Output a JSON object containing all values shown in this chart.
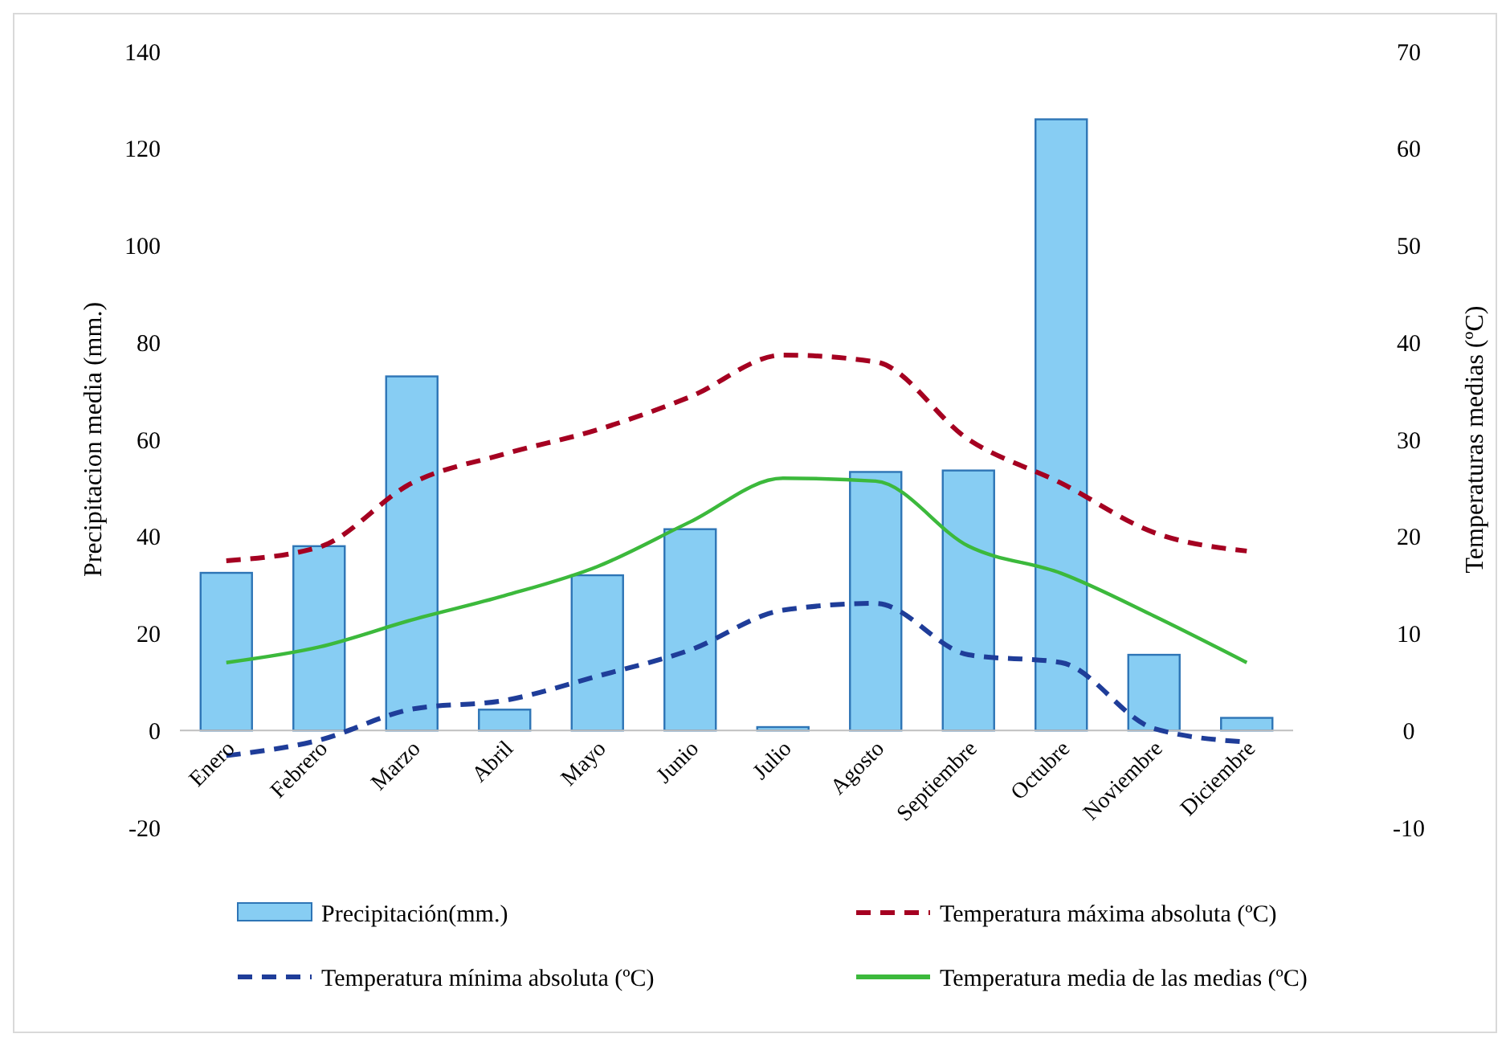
{
  "chart_data": {
    "type": "bar",
    "categories": [
      "Enero",
      "Febrero",
      "Marzo",
      "Abril",
      "Mayo",
      "Junio",
      "Julio",
      "Agosto",
      "Septiembre",
      "Octubre",
      "Noviembre",
      "Diciembre"
    ],
    "ylabel": "Precipitacion media (mm.)",
    "y2label": "Temperaturas medias (ºC)",
    "ylim": [
      -20,
      140
    ],
    "yticks": [
      -20,
      0,
      20,
      40,
      60,
      80,
      100,
      120,
      140
    ],
    "y2lim": [
      -10,
      70
    ],
    "y2ticks": [
      -10,
      0,
      10,
      20,
      30,
      40,
      50,
      60,
      70
    ],
    "legend": "bottom",
    "grid": false,
    "series": [
      {
        "name": "Precipitación(mm.)",
        "color": "#87cdf3",
        "values": [
          32.5,
          38,
          73,
          4.3,
          32,
          41.5,
          0.7,
          53.3,
          53.6,
          126,
          15.6,
          2.6
        ]
      },
      {
        "name": "Temperatura máxima absoluta (ºC)",
        "type": "line",
        "axis": "y2",
        "line_style": "dashed",
        "color": "#a50021",
        "values": [
          17.5,
          18.9,
          25.5,
          28.5,
          31,
          34.4,
          38.7,
          38,
          30,
          25.5,
          20.4,
          18.5
        ]
      },
      {
        "name": "Temperatura mínima absoluta (ºC)",
        "type": "line",
        "axis": "y2",
        "line_style": "dashed",
        "color": "#1f3d99",
        "values": [
          -2.6,
          -1,
          2.2,
          3.1,
          5.6,
          8.3,
          12.4,
          13.1,
          7.8,
          7,
          0.2,
          -1.2
        ]
      },
      {
        "name": "Temperatura media de las medias (ºC)",
        "type": "line",
        "axis": "y2",
        "line_style": "solid",
        "color": "#3cb93c",
        "values": [
          7,
          8.6,
          11.4,
          13.9,
          16.9,
          21.5,
          26,
          25.7,
          19,
          16.2,
          11.8,
          7
        ]
      }
    ]
  }
}
